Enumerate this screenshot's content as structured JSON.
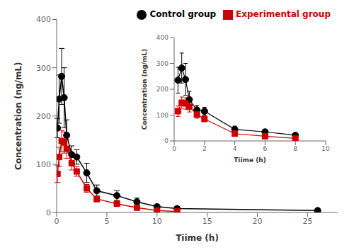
{
  "chart_data": [
    {
      "type": "line",
      "x": [
        0.083,
        0.25,
        0.5,
        0.75,
        1.0,
        1.5,
        2.0,
        3.0,
        4.0,
        6.0,
        8.0,
        10.0,
        12.0,
        26.0
      ],
      "xlabel": "Tiime (h)",
      "ylabel": "Concentration (ng/mL)",
      "xlim": [
        0,
        28
      ],
      "ylim": [
        0,
        400
      ],
      "xticks": [
        0,
        5,
        10,
        15,
        20,
        25
      ],
      "yticks": [
        0,
        100,
        200,
        300,
        400
      ],
      "grid": false,
      "legend": "upper right",
      "series": [
        {
          "name": "Control group",
          "color": "#000000",
          "marker": "circle",
          "values": [
            175,
            235,
            282,
            238,
            160,
            120,
            115,
            82,
            45,
            35,
            22,
            12,
            8,
            4
          ],
          "errors": [
            20,
            50,
            58,
            62,
            32,
            18,
            15,
            20,
            12,
            10,
            8,
            4,
            3,
            2
          ]
        },
        {
          "name": "Experimental group",
          "color": "#cc0000",
          "marker": "square",
          "values": [
            80,
            115,
            148,
            145,
            132,
            102,
            85,
            50,
            28,
            18,
            10,
            4,
            2,
            null
          ],
          "errors": [
            18,
            20,
            22,
            22,
            20,
            14,
            10,
            8,
            6,
            5,
            4,
            2,
            1,
            null
          ]
        }
      ]
    },
    {
      "type": "line",
      "x": [
        0.25,
        0.5,
        0.75,
        1.0,
        1.5,
        2.0,
        4.0,
        6.0,
        8.0
      ],
      "xlabel": "Tiime (h)",
      "ylabel": "Concentration (ng/mL)",
      "xlim": [
        0,
        10
      ],
      "ylim": [
        0,
        400
      ],
      "xticks": [
        0,
        2,
        4,
        6,
        8,
        10
      ],
      "yticks": [
        0,
        100,
        200,
        300,
        400
      ],
      "grid": false,
      "series": [
        {
          "color": "#000000",
          "marker": "circle",
          "values": [
            235,
            282,
            238,
            160,
            120,
            115,
            45,
            35,
            22
          ],
          "errors": [
            50,
            58,
            62,
            32,
            18,
            15,
            12,
            10,
            8
          ]
        },
        {
          "color": "#cc0000",
          "marker": "square",
          "values": [
            115,
            148,
            145,
            132,
            102,
            85,
            28,
            18,
            10
          ],
          "errors": [
            20,
            22,
            22,
            20,
            14,
            10,
            6,
            5,
            4
          ]
        }
      ]
    }
  ]
}
